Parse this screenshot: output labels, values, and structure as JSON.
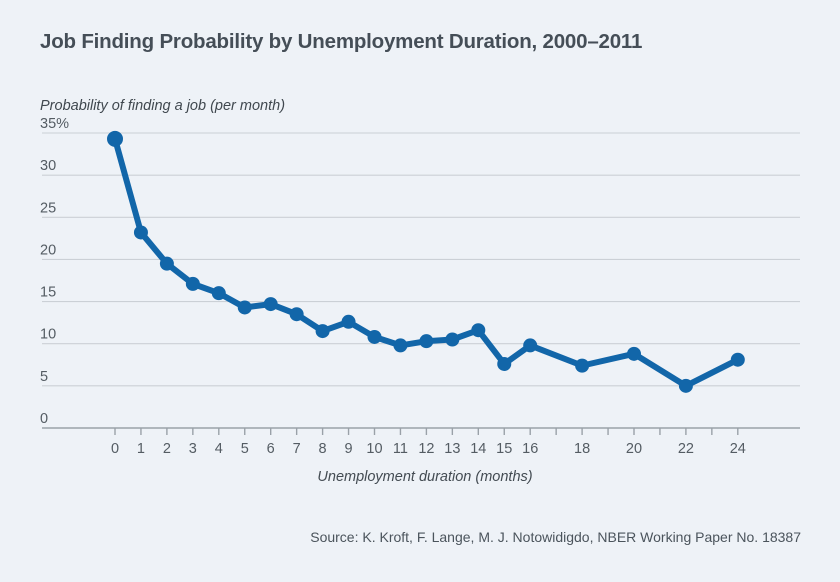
{
  "page": {
    "title": "Job Finding Probability by Unemployment Duration, 2000–2011",
    "source": "Source: K. Kroft, F. Lange, M. J. Notowidigdo, NBER Working Paper No. 18387"
  },
  "chart_data": {
    "type": "line",
    "title": "Job Finding Probability by Unemployment Duration, 2000–2011",
    "ylabel": "Probability of finding a job (per month)",
    "xlabel": "Unemployment duration (months)",
    "x": [
      0,
      1,
      2,
      3,
      4,
      5,
      6,
      7,
      8,
      9,
      10,
      11,
      12,
      13,
      14,
      15,
      16,
      18,
      20,
      22,
      24
    ],
    "values": [
      34.3,
      23.2,
      19.5,
      17.1,
      16.0,
      14.3,
      14.7,
      13.5,
      11.5,
      12.6,
      10.8,
      9.8,
      10.3,
      10.5,
      11.6,
      7.6,
      9.8,
      7.4,
      8.8,
      5.0,
      8.1
    ],
    "ylim": [
      0,
      35
    ],
    "y_ticks": [
      0,
      5,
      10,
      15,
      20,
      25,
      30,
      35
    ],
    "y_tick_labels": [
      "0",
      "5",
      "10",
      "15",
      "20",
      "25",
      "30",
      "35%"
    ],
    "x_minor_ticks": [
      0,
      1,
      2,
      3,
      4,
      5,
      6,
      7,
      8,
      9,
      10,
      11,
      12,
      13,
      14,
      15,
      16,
      17,
      18,
      19,
      20,
      21,
      22,
      23,
      24
    ],
    "x_labeled_ticks": [
      0,
      1,
      2,
      3,
      4,
      5,
      6,
      7,
      8,
      9,
      10,
      11,
      12,
      13,
      14,
      15,
      16,
      18,
      20,
      22,
      24
    ],
    "grid": "horizontal",
    "legend": "none",
    "colors": {
      "background": "#eef2f7",
      "line": "#1266a9",
      "grid": "#cbd0d6",
      "axis": "#9aa1a8",
      "tick_text": "#545c63",
      "title_text": "#454e57"
    }
  }
}
